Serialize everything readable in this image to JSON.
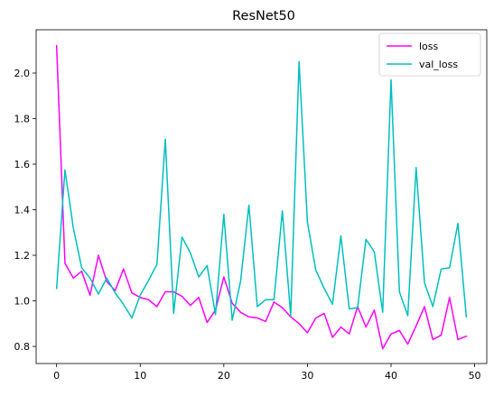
{
  "chart_data": {
    "type": "line",
    "title": "ResNet50",
    "xlabel": "",
    "ylabel": "",
    "xlim": [
      -2.45,
      51.45
    ],
    "ylim": [
      0.725,
      2.19
    ],
    "xticks": [
      0,
      10,
      20,
      30,
      40,
      50
    ],
    "yticks": [
      0.8,
      1.0,
      1.2,
      1.4,
      1.6,
      1.8,
      2.0
    ],
    "grid": false,
    "legend_position": "top-right",
    "x": [
      0,
      1,
      2,
      3,
      4,
      5,
      6,
      7,
      8,
      9,
      10,
      11,
      12,
      13,
      14,
      15,
      16,
      17,
      18,
      19,
      20,
      21,
      22,
      23,
      24,
      25,
      26,
      27,
      28,
      29,
      30,
      31,
      32,
      33,
      34,
      35,
      36,
      37,
      38,
      39,
      40,
      41,
      42,
      43,
      44,
      45,
      46,
      47,
      48,
      49
    ],
    "series": [
      {
        "name": "loss",
        "color": "#ff00ff",
        "values": [
          2.12,
          1.165,
          1.1,
          1.13,
          1.025,
          1.2,
          1.085,
          1.045,
          1.14,
          1.035,
          1.015,
          1.005,
          0.975,
          1.04,
          1.04,
          1.02,
          0.98,
          1.015,
          0.905,
          0.96,
          1.105,
          0.99,
          0.95,
          0.93,
          0.925,
          0.91,
          0.995,
          0.97,
          0.93,
          0.9,
          0.86,
          0.925,
          0.945,
          0.84,
          0.885,
          0.855,
          0.975,
          0.885,
          0.96,
          0.79,
          0.855,
          0.87,
          0.81,
          0.89,
          0.975,
          0.83,
          0.85,
          1.015,
          0.83,
          0.845
        ]
      },
      {
        "name": "val_loss",
        "color": "#00bfbf",
        "values": [
          1.055,
          1.575,
          1.32,
          1.145,
          1.1,
          1.03,
          1.1,
          1.035,
          0.985,
          0.925,
          1.025,
          1.09,
          1.16,
          1.71,
          0.945,
          1.28,
          1.21,
          1.105,
          1.155,
          0.94,
          1.38,
          0.915,
          1.085,
          1.42,
          0.975,
          1.005,
          1.005,
          1.395,
          0.935,
          2.05,
          1.345,
          1.135,
          1.055,
          0.985,
          1.285,
          0.965,
          0.97,
          1.27,
          1.215,
          0.95,
          1.97,
          1.04,
          0.935,
          1.585,
          1.08,
          0.975,
          1.14,
          1.145,
          1.34,
          0.93
        ]
      }
    ]
  }
}
